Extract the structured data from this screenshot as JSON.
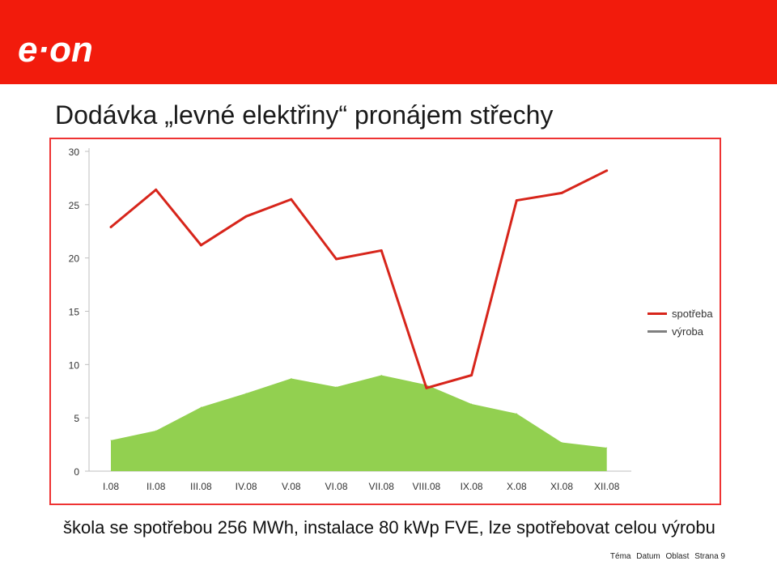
{
  "header": {
    "brand": "e·on",
    "color": "#f21b0c"
  },
  "title": "Dodávka „levné elektřiny“ pronájem střechy",
  "chart_data": {
    "type": "line+area",
    "categories": [
      "I.08",
      "II.08",
      "III.08",
      "IV.08",
      "V.08",
      "VI.08",
      "VII.08",
      "VIII.08",
      "IX.08",
      "X.08",
      "XI.08",
      "XII.08"
    ],
    "series": [
      {
        "name": "spotřeba",
        "type": "line",
        "color": "#d7251b",
        "values": [
          22.9,
          26.4,
          21.2,
          23.9,
          25.5,
          19.9,
          20.7,
          7.8,
          9.0,
          25.4,
          26.1,
          28.2
        ]
      },
      {
        "name": "výroba",
        "type": "area",
        "color": "#92d050",
        "legend_color": "#7f7f7f",
        "values": [
          2.9,
          3.8,
          6.0,
          7.3,
          8.7,
          7.9,
          9.0,
          8.1,
          6.3,
          5.4,
          2.7,
          2.2
        ]
      }
    ],
    "ylim": [
      0,
      30
    ],
    "yticks": [
      0,
      5,
      10,
      15,
      20,
      25,
      30
    ],
    "grid": false,
    "legend": "right"
  },
  "caption": "škola se spotřebou 256 MWh, instalace 80 kWp FVE, lze spotřebovat celou výrobu",
  "footer": {
    "tema": "Téma",
    "datum": "Datum",
    "oblast": "Oblast",
    "strana": "Strana 9"
  }
}
